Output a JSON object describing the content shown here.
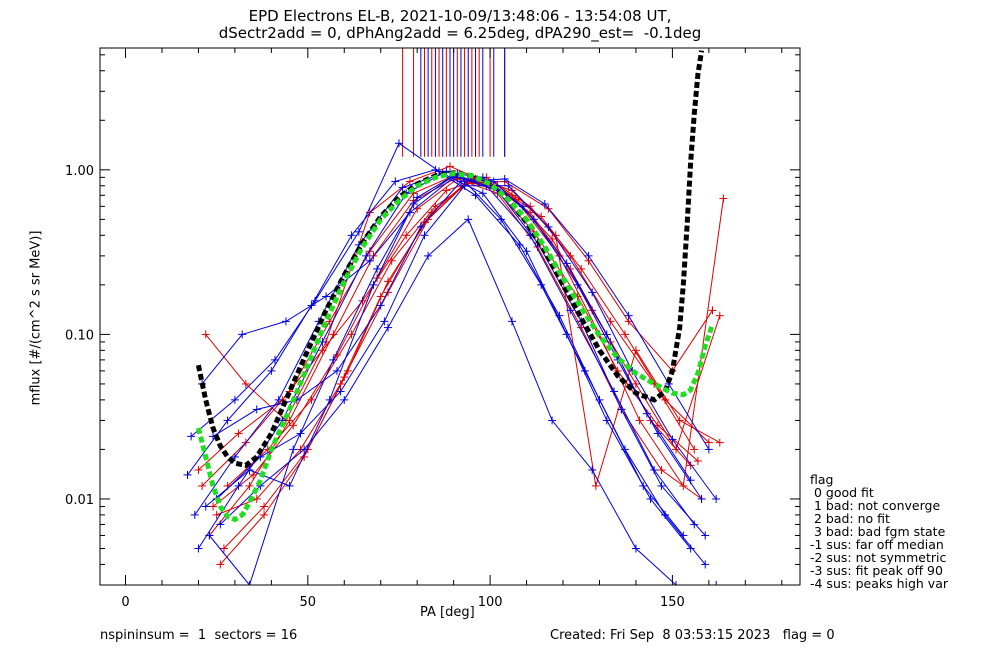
{
  "header": {
    "title_line1": "EPD Electrons EL-B, 2021-10-09/13:48:06 - 13:54:08 UT,",
    "title_line2": "dSectr2add = 0, dPhAng2add = 6.25deg, dPA290_est=  -0.1deg"
  },
  "footer": {
    "left": "nspininsum =  1  sectors = 16",
    "right": "Created: Fri Sep  8 03:53:15 2023   flag = 0"
  },
  "legend": {
    "title": "flag",
    "items": [
      " 0 good fit",
      " 1 bad: not converge",
      " 2 bad: no fit",
      " 3 bad: bad fgm state",
      "-1 sus: far off median",
      "-2 sus: not symmetric",
      "-3 sus: fit peak off 90",
      "-4 sus: peaks high var"
    ]
  },
  "colors": {
    "series_red": "#e00000",
    "series_blue": "#0000e0",
    "fit_black": "#000000",
    "fit_green": "#22dd22",
    "axis": "#000000"
  },
  "chart_data": {
    "type": "line",
    "xlabel": "PA [deg]",
    "ylabel": "mflux [#/(cm^2 s sr MeV)]",
    "xlim": [
      -7,
      185
    ],
    "ylim": [
      0.003,
      5.5
    ],
    "yscale": "log",
    "x_ticks": [
      0,
      50,
      100,
      150
    ],
    "x_tick_labels": [
      "0",
      "50",
      "100",
      "150"
    ],
    "y_ticks": [
      0.01,
      0.1,
      1.0
    ],
    "y_tick_labels": [
      "0.01",
      "0.10",
      "1.00"
    ],
    "series": [
      {
        "color": "red",
        "x": [
          21,
          33,
          45,
          56,
          67,
          79,
          90,
          101,
          112,
          124,
          135,
          146,
          157
        ],
        "y": [
          0.012,
          0.022,
          0.045,
          0.12,
          0.32,
          0.72,
          0.92,
          0.78,
          0.42,
          0.17,
          0.06,
          0.028,
          0.017
        ]
      },
      {
        "color": "red",
        "x": [
          24,
          35,
          46,
          58,
          69,
          80,
          91,
          102,
          113,
          125,
          136,
          147,
          158
        ],
        "y": [
          0.009,
          0.014,
          0.028,
          0.075,
          0.22,
          0.58,
          0.88,
          0.72,
          0.34,
          0.11,
          0.035,
          0.015,
          0.01
        ]
      },
      {
        "color": "red",
        "x": [
          22,
          33,
          44,
          55,
          67,
          78,
          89,
          100,
          111,
          122,
          133,
          144,
          155
        ],
        "y": [
          0.1,
          0.05,
          0.03,
          0.09,
          0.55,
          0.85,
          1.05,
          0.82,
          0.55,
          0.25,
          0.09,
          0.03,
          0.016
        ]
      },
      {
        "color": "red",
        "x": [
          23,
          34,
          45,
          57,
          68,
          79,
          91,
          102,
          114,
          125,
          137,
          148,
          160
        ],
        "y": [
          0.006,
          0.012,
          0.03,
          0.1,
          0.3,
          0.65,
          0.9,
          0.8,
          0.52,
          0.25,
          0.1,
          0.04,
          0.022
        ]
      },
      {
        "color": "red",
        "x": [
          25,
          36,
          48,
          59,
          70,
          82,
          93,
          104,
          116,
          127,
          138,
          150,
          161
        ],
        "y": [
          0.008,
          0.01,
          0.02,
          0.05,
          0.17,
          0.48,
          0.82,
          0.85,
          0.58,
          0.28,
          0.12,
          0.06,
          0.14
        ]
      },
      {
        "color": "red",
        "x": [
          26,
          38,
          49,
          60,
          72,
          83,
          94,
          106,
          117,
          128,
          140,
          151,
          163
        ],
        "y": [
          0.004,
          0.008,
          0.018,
          0.055,
          0.18,
          0.5,
          0.85,
          0.7,
          0.38,
          0.14,
          0.05,
          0.02,
          0.13
        ]
      },
      {
        "color": "red",
        "x": [
          28,
          39,
          51,
          62,
          73,
          85,
          96,
          107,
          119,
          130,
          141,
          153,
          164
        ],
        "y": [
          0.012,
          0.02,
          0.04,
          0.1,
          0.28,
          0.6,
          0.88,
          0.66,
          0.3,
          0.1,
          0.03,
          0.012,
          0.67
        ]
      },
      {
        "color": "red",
        "x": [
          20,
          31,
          43,
          54,
          65,
          77,
          88,
          99,
          111,
          122,
          133,
          145,
          156
        ],
        "y": [
          0.015,
          0.025,
          0.04,
          0.08,
          0.16,
          0.4,
          0.75,
          0.9,
          0.6,
          0.3,
          0.12,
          0.05,
          0.02
        ]
      },
      {
        "color": "red",
        "x": [
          27,
          38,
          50,
          61,
          72,
          84,
          95,
          106,
          118,
          129,
          140,
          152,
          163
        ],
        "y": [
          0.005,
          0.009,
          0.02,
          0.06,
          0.21,
          0.55,
          0.9,
          0.75,
          0.4,
          0.012,
          0.08,
          0.03,
          0.022
        ]
      },
      {
        "color": "blue",
        "x": [
          17,
          28,
          40,
          51,
          62,
          74,
          85,
          96,
          108,
          119,
          130,
          142,
          153
        ],
        "y": [
          0.014,
          0.03,
          0.06,
          0.15,
          0.4,
          0.85,
          1.0,
          0.7,
          0.35,
          0.13,
          0.04,
          0.012,
          0.006
        ]
      },
      {
        "color": "blue",
        "x": [
          19,
          30,
          42,
          53,
          64,
          76,
          87,
          98,
          110,
          121,
          132,
          144,
          155
        ],
        "y": [
          0.008,
          0.018,
          0.04,
          0.12,
          0.35,
          0.78,
          0.95,
          0.72,
          0.32,
          0.1,
          0.03,
          0.01,
          0.005
        ]
      },
      {
        "color": "blue",
        "x": [
          20,
          31,
          43,
          54,
          66,
          77,
          88,
          99,
          111,
          122,
          134,
          145,
          156
        ],
        "y": [
          0.005,
          0.012,
          0.03,
          0.09,
          0.3,
          0.72,
          0.98,
          0.8,
          0.4,
          0.14,
          0.045,
          0.015,
          0.007
        ]
      },
      {
        "color": "blue",
        "x": [
          21,
          32,
          44,
          55,
          67,
          78,
          90,
          101,
          112,
          124,
          135,
          146,
          158
        ],
        "y": [
          0.05,
          0.1,
          0.12,
          0.17,
          0.28,
          0.55,
          0.9,
          0.85,
          0.5,
          0.2,
          0.07,
          0.025,
          0.01
        ]
      },
      {
        "color": "blue",
        "x": [
          22,
          34,
          45,
          56,
          68,
          79,
          90,
          102,
          113,
          125,
          136,
          147,
          159
        ],
        "y": [
          0.009,
          0.015,
          0.012,
          0.04,
          0.2,
          0.62,
          0.92,
          0.75,
          0.36,
          0.12,
          0.035,
          0.012,
          0.006
        ]
      },
      {
        "color": "blue",
        "x": [
          23,
          34,
          46,
          57,
          69,
          80,
          91,
          103,
          114,
          126,
          137,
          148,
          159
        ],
        "y": [
          0.006,
          0.003,
          0.02,
          0.07,
          0.25,
          0.68,
          0.95,
          0.5,
          0.2,
          0.06,
          0.02,
          0.008,
          0.004
        ]
      },
      {
        "color": "blue",
        "x": [
          24,
          36,
          47,
          58,
          70,
          81,
          92,
          104,
          115,
          127,
          138,
          149,
          160
        ],
        "y": [
          0.024,
          0.035,
          0.04,
          0.06,
          0.15,
          0.45,
          0.85,
          0.88,
          0.62,
          0.3,
          0.13,
          0.05,
          0.02
        ]
      },
      {
        "color": "blue",
        "x": [
          25,
          37,
          48,
          59,
          71,
          82,
          93,
          105,
          116,
          128,
          139,
          150,
          162
        ],
        "y": [
          0.01,
          0.018,
          0.025,
          0.045,
          0.12,
          0.4,
          0.8,
          0.8,
          0.45,
          0.18,
          0.06,
          0.023,
          0.01
        ]
      },
      {
        "color": "blue",
        "x": [
          18,
          30,
          41,
          52,
          64,
          75,
          86,
          98,
          109,
          121,
          132,
          143,
          155
        ],
        "y": [
          0.024,
          0.04,
          0.07,
          0.16,
          0.42,
          1.45,
          0.98,
          0.9,
          0.6,
          0.27,
          0.1,
          0.033,
          0.013
        ]
      },
      {
        "color": "blue",
        "x": [
          26,
          37,
          49,
          60,
          72,
          83,
          94,
          106,
          117,
          128,
          140,
          151,
          162
        ],
        "y": [
          0.007,
          0.012,
          0.02,
          0.04,
          0.11,
          0.3,
          0.5,
          0.12,
          0.03,
          0.015,
          0.005,
          0.003,
          0.003
        ]
      }
    ],
    "fits": [
      {
        "name": "",
        "color": "black",
        "style": "dashed",
        "x": [
          20,
          22,
          24,
          26,
          28,
          30,
          33,
          36,
          40,
          45,
          50,
          55,
          60,
          65,
          70,
          75,
          80,
          85,
          90,
          95,
          100,
          105,
          110,
          115,
          120,
          125,
          130,
          135,
          140,
          145,
          148,
          150,
          152,
          153,
          154,
          155,
          156,
          157,
          158
        ],
        "y": [
          0.065,
          0.04,
          0.027,
          0.021,
          0.018,
          0.0165,
          0.016,
          0.018,
          0.025,
          0.045,
          0.08,
          0.14,
          0.23,
          0.36,
          0.52,
          0.68,
          0.82,
          0.92,
          0.96,
          0.92,
          0.82,
          0.66,
          0.48,
          0.32,
          0.2,
          0.125,
          0.08,
          0.056,
          0.044,
          0.04,
          0.045,
          0.06,
          0.11,
          0.2,
          0.45,
          1.1,
          2.2,
          3.8,
          5.3
        ]
      },
      {
        "name": "",
        "color": "green",
        "style": "dashed",
        "x": [
          20,
          22,
          24,
          26,
          28,
          30,
          32,
          34,
          37,
          40,
          45,
          50,
          55,
          60,
          65,
          70,
          75,
          80,
          85,
          90,
          95,
          100,
          105,
          110,
          115,
          120,
          125,
          130,
          135,
          140,
          145,
          150,
          153,
          155,
          157,
          159,
          161
        ],
        "y": [
          0.027,
          0.018,
          0.012,
          0.009,
          0.0078,
          0.0075,
          0.008,
          0.0095,
          0.013,
          0.02,
          0.035,
          0.065,
          0.12,
          0.21,
          0.34,
          0.5,
          0.65,
          0.8,
          0.9,
          0.95,
          0.92,
          0.82,
          0.66,
          0.5,
          0.34,
          0.22,
          0.145,
          0.098,
          0.072,
          0.058,
          0.05,
          0.044,
          0.043,
          0.046,
          0.058,
          0.085,
          0.115
        ]
      }
    ],
    "vertical_markers": {
      "ymin": 1.2,
      "ymax": 5.5,
      "red_x": [
        76,
        79,
        82,
        84,
        86,
        88,
        91,
        93,
        95,
        97,
        100,
        104
      ],
      "blue_x": [
        81,
        83,
        85,
        87,
        89,
        90,
        92,
        94,
        96,
        98,
        101,
        104
      ]
    }
  }
}
